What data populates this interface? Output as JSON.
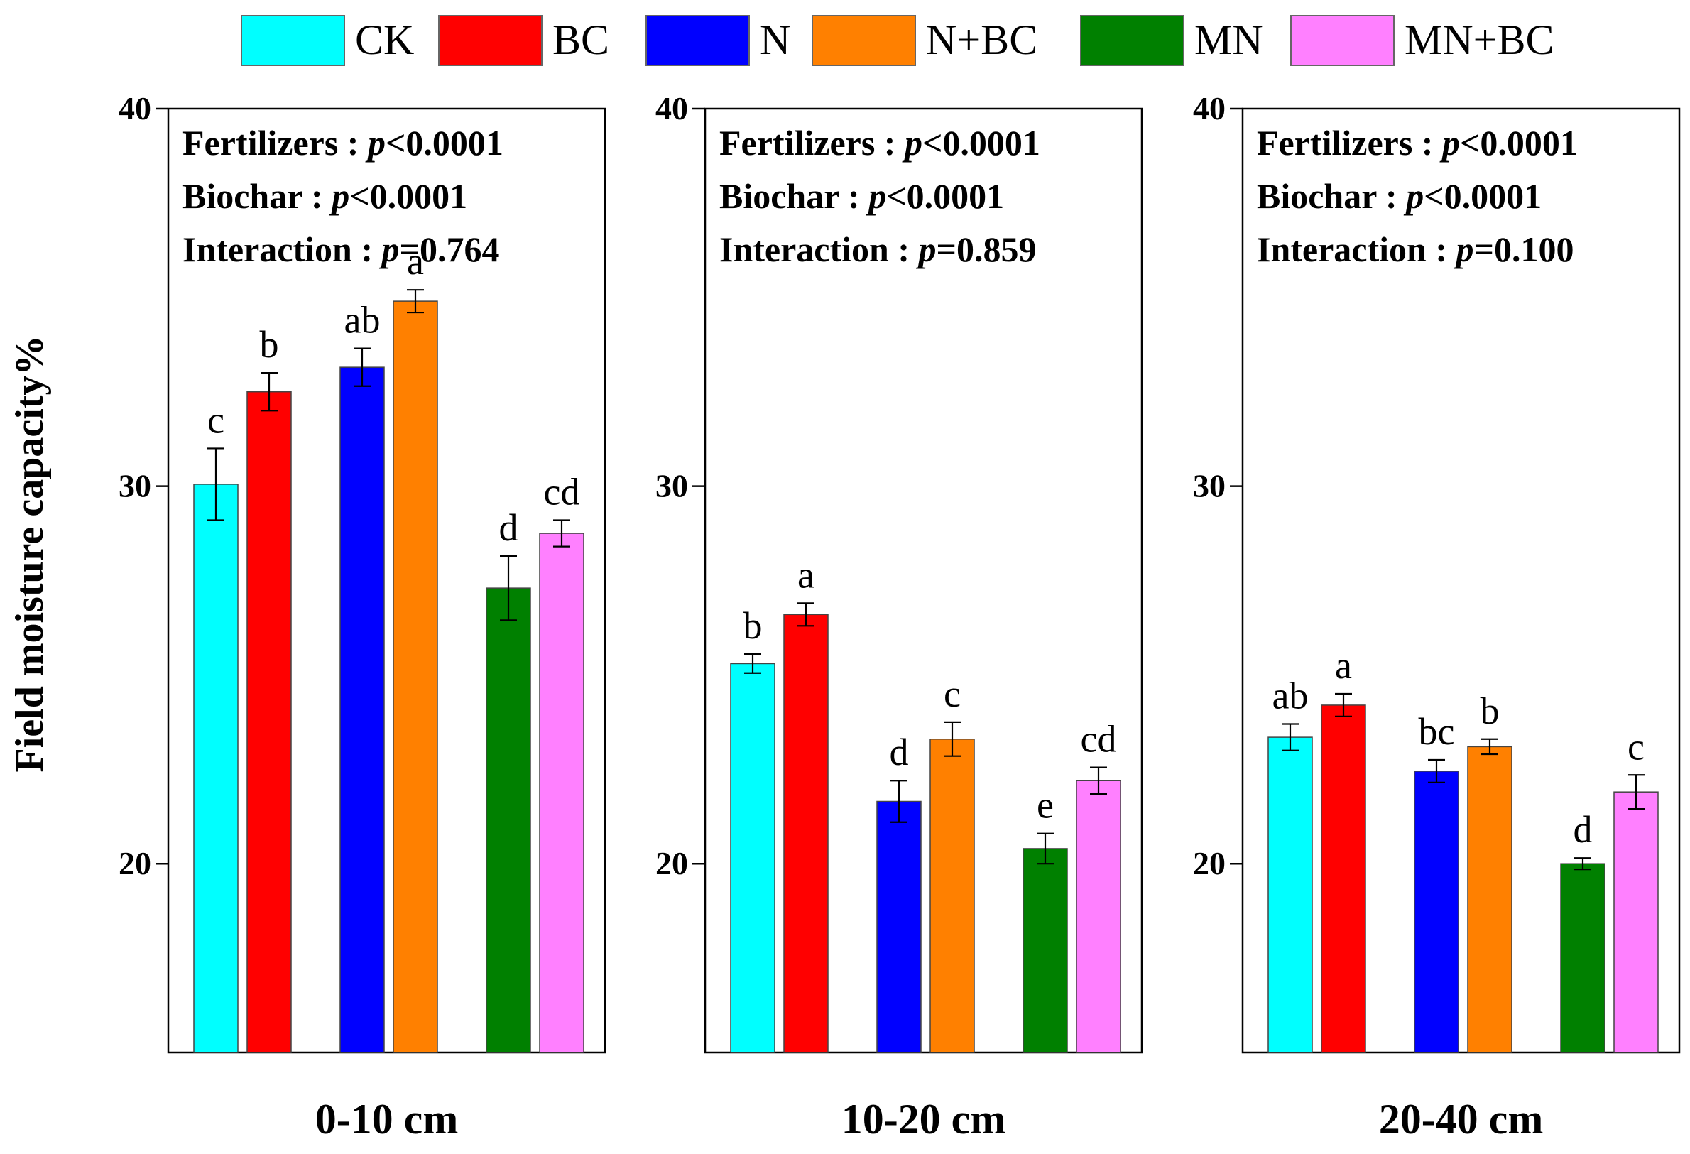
{
  "chart_data": {
    "type": "bar",
    "ylabel": "Field moisture capacity%",
    "ylim": [
      15,
      40
    ],
    "yticks": [
      20,
      30,
      40
    ],
    "legend": {
      "position": "top",
      "entries": [
        {
          "name": "CK",
          "color": "#00ffff"
        },
        {
          "name": "BC",
          "color": "#ff0000"
        },
        {
          "name": "N",
          "color": "#0000ff"
        },
        {
          "name": "N+BC",
          "color": "#ff8000"
        },
        {
          "name": "MN",
          "color": "#008000"
        },
        {
          "name": "MN+BC",
          "color": "#ff80ff"
        }
      ]
    },
    "stat_labels": {
      "fertilizers": "Fertilizers : ",
      "biochar": "Biochar : ",
      "interaction": "Interaction : ",
      "p": "p"
    },
    "panels": [
      {
        "xlabel": "0-10 cm",
        "stats": {
          "fertilizers": "<0.0001",
          "biochar": "<0.0001",
          "interaction": "=0.764"
        },
        "values": [
          30.05,
          32.5,
          33.15,
          34.9,
          27.3,
          28.75
        ],
        "errors": [
          0.95,
          0.5,
          0.5,
          0.3,
          0.85,
          0.35
        ],
        "letters": [
          "c",
          "b",
          "ab",
          "a",
          "d",
          "cd"
        ]
      },
      {
        "xlabel": "10-20 cm",
        "stats": {
          "fertilizers": "<0.0001",
          "biochar": "<0.0001",
          "interaction": "=0.859"
        },
        "values": [
          25.3,
          26.6,
          21.65,
          23.3,
          20.4,
          22.2
        ],
        "errors": [
          0.25,
          0.3,
          0.55,
          0.45,
          0.4,
          0.35
        ],
        "letters": [
          "b",
          "a",
          "d",
          "c",
          "e",
          "cd"
        ]
      },
      {
        "xlabel": "20-40 cm",
        "stats": {
          "fertilizers": "<0.0001",
          "biochar": "<0.0001",
          "interaction": "=0.100"
        },
        "values": [
          23.35,
          24.2,
          22.45,
          23.1,
          20.0,
          21.9
        ],
        "errors": [
          0.35,
          0.3,
          0.3,
          0.2,
          0.15,
          0.45
        ],
        "letters": [
          "ab",
          "a",
          "bc",
          "b",
          "d",
          "c"
        ]
      }
    ]
  }
}
